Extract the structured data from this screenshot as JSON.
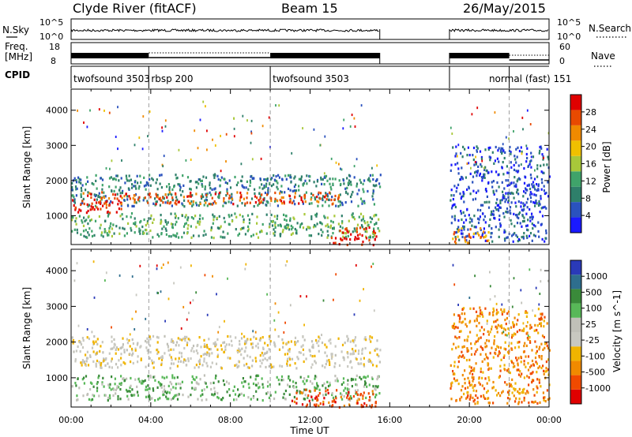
{
  "header": {
    "station": "Clyde River (fitACF)",
    "beam": "Beam 15",
    "date": "26/May/2015"
  },
  "noise_panel": {
    "left_label": "N.Sky",
    "right_label": "N.Search",
    "left_ticks": [
      "10^5",
      "10^0"
    ],
    "right_ticks": [
      "10^5",
      "10^0"
    ]
  },
  "freq_panel": {
    "left_label_top": "Freq.",
    "left_label_bottom": "[MHz]",
    "right_label": "Nave",
    "left_ticks": [
      "18",
      "8"
    ],
    "right_ticks": [
      "60",
      "0"
    ]
  },
  "cpid": {
    "label": "CPID",
    "segments": [
      {
        "name": "twofsound 3503",
        "start": 0.0,
        "end": 3.9
      },
      {
        "name": "rbsp 200",
        "start": 3.9,
        "end": 10.0
      },
      {
        "name": "twofsound 3503",
        "start": 10.0,
        "end": 15.5
      },
      {
        "name": "normal (fast) 151",
        "start": 19.0,
        "end": 24.0
      }
    ]
  },
  "colors": {
    "power": [
      "#1a1aff",
      "#2a52be",
      "#2e7f6a",
      "#3fa36a",
      "#a8c83a",
      "#f0c000",
      "#f08a00",
      "#e84a00",
      "#e00000"
    ],
    "velocity": [
      "#e00000",
      "#f04a00",
      "#f08a00",
      "#f0b400",
      "#c8c8c0",
      "#c0c0b8",
      "#58b858",
      "#3a8a3a",
      "#2e6e8e",
      "#2a3ab8"
    ]
  },
  "chart_data": [
    {
      "type": "heatmap",
      "panel": "power",
      "xlabel": "",
      "ylabel": "Slant Range [km]",
      "xlim": [
        0,
        24
      ],
      "ylim": [
        180,
        4600
      ],
      "yticks": [
        "1000",
        "2000",
        "3000",
        "4000"
      ],
      "colorbar_label": "Power [dB]",
      "colorbar_ticks": [
        "4",
        "8",
        "12",
        "16",
        "20",
        "24",
        "28"
      ],
      "regions": [
        {
          "x0": 0.0,
          "x1": 15.5,
          "y0": 1300,
          "y1": 2200,
          "level": 2
        },
        {
          "x0": 0.5,
          "x1": 13.5,
          "y0": 1350,
          "y1": 1700,
          "level": 7
        },
        {
          "x0": 0.0,
          "x1": 2.5,
          "y0": 1100,
          "y1": 1500,
          "level": 8
        },
        {
          "x0": 0.0,
          "x1": 15.5,
          "y0": 400,
          "y1": 1100,
          "level": 3
        },
        {
          "x0": 13.0,
          "x1": 15.3,
          "y0": 200,
          "y1": 700,
          "level": 8
        },
        {
          "x0": 19.0,
          "x1": 24.0,
          "y0": 300,
          "y1": 3000,
          "level": 1
        },
        {
          "x0": 19.1,
          "x1": 21.0,
          "y0": 250,
          "y1": 700,
          "level": 6
        }
      ]
    },
    {
      "type": "heatmap",
      "panel": "velocity",
      "xlabel": "Time UT",
      "ylabel": "Slant Range [km]",
      "xlim": [
        0,
        24
      ],
      "ylim": [
        180,
        4600
      ],
      "xticks": [
        "00:00",
        "04:00",
        "08:00",
        "12:00",
        "16:00",
        "20:00",
        "00:00"
      ],
      "yticks": [
        "1000",
        "2000",
        "3000",
        "4000"
      ],
      "colorbar_label": "Velocity [m s^-1]",
      "colorbar_ticks": [
        "1000",
        "500",
        "100",
        "25",
        "-25",
        "-100",
        "-500",
        "-1000"
      ],
      "regions": [
        {
          "x0": 0.0,
          "x1": 15.5,
          "y0": 1300,
          "y1": 2200,
          "level": 4
        },
        {
          "x0": 0.0,
          "x1": 15.5,
          "y0": 400,
          "y1": 1100,
          "level": 6
        },
        {
          "x0": 11.0,
          "x1": 15.3,
          "y0": 200,
          "y1": 700,
          "level": 1
        },
        {
          "x0": 19.0,
          "x1": 24.0,
          "y0": 300,
          "y1": 3000,
          "level": 2
        }
      ]
    }
  ]
}
